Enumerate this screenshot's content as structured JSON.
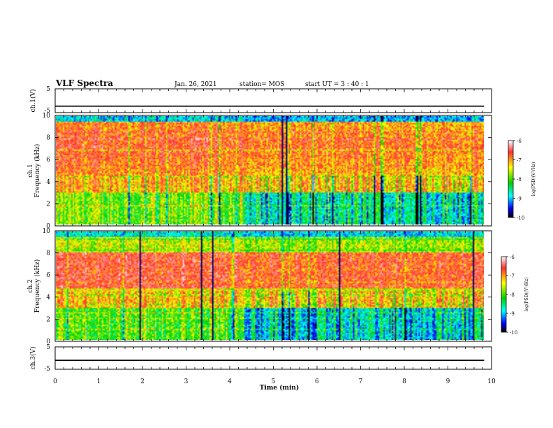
{
  "header": {
    "title": "VLF Spectra",
    "date": "Jan. 26, 2021",
    "station": "station= MOS",
    "start": "start UT =  3 : 40 : 1"
  },
  "chart_data": [
    {
      "type": "line",
      "name_label": "ch.1(V)",
      "ylabel": "ch.1(V)",
      "ylim": [
        -5,
        5
      ],
      "yticks": [
        "5",
        "-5"
      ],
      "x": [
        0,
        9.83
      ],
      "values": [
        -2.3,
        -2.3
      ],
      "xlim": [
        0,
        10
      ]
    },
    {
      "type": "heatmap",
      "ylabel_top": "ch.1",
      "ylabel": "Frequency (kHz)",
      "ylim": [
        0,
        10
      ],
      "yticks": [
        "0",
        "2",
        "4",
        "6",
        "8",
        "10"
      ],
      "xlim": [
        0,
        9.83
      ],
      "colorbar": {
        "label": "log(PSD)(V²/Hz)",
        "range": [
          -10,
          -6
        ],
        "ticks": [
          "-6",
          "-7",
          "-8",
          "-9",
          "-10"
        ]
      }
    },
    {
      "type": "heatmap",
      "ylabel_top": "ch.2",
      "ylabel": "Frequency (kHz)",
      "ylim": [
        0,
        10
      ],
      "yticks": [
        "0",
        "2",
        "4",
        "6",
        "8",
        "10"
      ],
      "xlim": [
        0,
        9.83
      ],
      "colorbar": {
        "label": "log(PSD)(V²/Hz)",
        "range": [
          -10,
          -6
        ],
        "ticks": [
          "-6",
          "-7",
          "-8",
          "-9",
          "-10"
        ]
      }
    },
    {
      "type": "line",
      "ylabel": "ch.3(V)",
      "ylim": [
        -5,
        5
      ],
      "yticks": [
        "5",
        "-5"
      ],
      "x": [
        0,
        9.83
      ],
      "values": [
        -1.0,
        -1.0
      ],
      "xlim": [
        0,
        10
      ]
    }
  ],
  "xaxis": {
    "label": "Time (min)",
    "ticks": [
      "0",
      "1",
      "2",
      "3",
      "4",
      "5",
      "6",
      "7",
      "8",
      "9",
      "10"
    ],
    "range": [
      0,
      10
    ]
  }
}
